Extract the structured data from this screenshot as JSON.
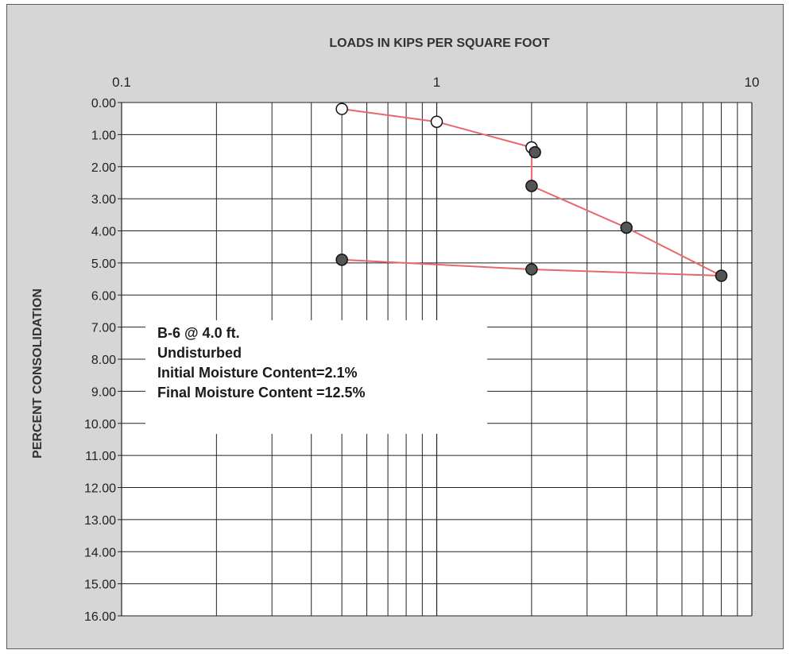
{
  "chart_data": {
    "type": "scatter",
    "title": "LOADS IN KIPS PER SQUARE FOOT",
    "xlabel": "LOADS IN KIPS PER SQUARE FOOT",
    "ylabel": "PERCENT CONSOLIDATION",
    "xscale": "log",
    "xlim": [
      0.1,
      10
    ],
    "ylim": [
      0,
      16
    ],
    "y_inverted": true,
    "grid": true,
    "x_tick_labels": [
      "0.1",
      "1",
      "10"
    ],
    "y_tick_labels": [
      "0.00",
      "1.00",
      "2.00",
      "3.00",
      "4.00",
      "5.00",
      "6.00",
      "7.00",
      "8.00",
      "9.00",
      "10.00",
      "11.00",
      "12.00",
      "13.00",
      "14.00",
      "15.00",
      "16.00"
    ],
    "series": [
      {
        "marker": "open-circle",
        "color": "#ffffff",
        "points": [
          {
            "x": 0.5,
            "y": 0.2
          },
          {
            "x": 1.0,
            "y": 0.6
          },
          {
            "x": 2.0,
            "y": 1.4
          }
        ]
      },
      {
        "marker": "filled-circle",
        "color": "#555555",
        "points": [
          {
            "x": 2.05,
            "y": 1.55
          },
          {
            "x": 2.0,
            "y": 2.6
          },
          {
            "x": 4.0,
            "y": 3.9
          },
          {
            "x": 8.0,
            "y": 5.4
          },
          {
            "x": 2.0,
            "y": 5.2
          },
          {
            "x": 0.5,
            "y": 4.9
          }
        ]
      }
    ],
    "line_path": [
      {
        "x": 0.5,
        "y": 0.2
      },
      {
        "x": 1.0,
        "y": 0.6
      },
      {
        "x": 2.0,
        "y": 1.4
      },
      {
        "x": 2.0,
        "y": 2.6
      },
      {
        "x": 4.0,
        "y": 3.9
      },
      {
        "x": 8.0,
        "y": 5.4
      },
      {
        "x": 2.0,
        "y": 5.2
      },
      {
        "x": 0.5,
        "y": 4.9
      }
    ],
    "line_color": "#e8676a"
  },
  "annotation": {
    "lines": [
      "B-6 @ 4.0 ft.",
      "Undisturbed",
      "Initial Moisture Content=2.1%",
      "Final Moisture Content =12.5%"
    ]
  }
}
